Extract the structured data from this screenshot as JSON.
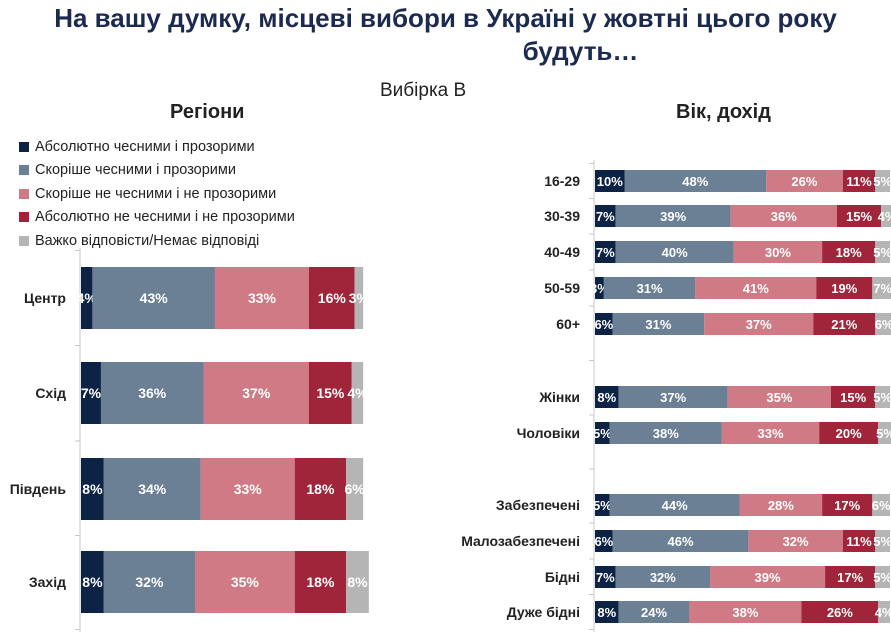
{
  "title_line1": "На вашу думку, місцеві вибори в Україні у жовтні цього року",
  "title_line2": "будуть…",
  "sample": "Вибірка B",
  "legend": {
    "items": [
      {
        "label": "Абсолютно чесними і прозорими",
        "color": "#0d2346"
      },
      {
        "label": "Скоріше чесними і прозорими",
        "color": "#6b7f95"
      },
      {
        "label": "Скоріше не чесними і не прозорими",
        "color": "#cf7a84"
      },
      {
        "label": "Абсолютно не чесними і не прозорими",
        "color": "#a0243a"
      },
      {
        "label": "Важко відповісти/Немає відповіді",
        "color": "#b5b5b5"
      }
    ]
  },
  "chart_data": [
    {
      "type": "bar",
      "orientation": "horizontal",
      "stacked": true,
      "title": "Регіони",
      "unit": "%",
      "categories": [
        "Центр",
        "Схід",
        "Південь",
        "Захід"
      ],
      "series": [
        {
          "name": "Абсолютно чесними і прозорими",
          "values": [
            4,
            7,
            8,
            8
          ]
        },
        {
          "name": "Скоріше чесними і прозорими",
          "values": [
            43,
            36,
            34,
            32
          ]
        },
        {
          "name": "Скоріше не чесними і не прозорими",
          "values": [
            33,
            37,
            33,
            35
          ]
        },
        {
          "name": "Абсолютно не чесними і не прозорими",
          "values": [
            16,
            15,
            18,
            18
          ]
        },
        {
          "name": "Важко відповісти/Немає відповіді",
          "values": [
            3,
            4,
            6,
            8
          ]
        }
      ]
    },
    {
      "type": "bar",
      "orientation": "horizontal",
      "stacked": true,
      "title": "Вік, дохід",
      "unit": "%",
      "categories": [
        "16-29",
        "30-39",
        "40-49",
        "50-59",
        "60+",
        "Жінки",
        "Чоловіки",
        "Забезпечені",
        "Малозабезпечені",
        "Бідні",
        "Дуже бідні"
      ],
      "groups": [
        [
          "16-29",
          "30-39",
          "40-49",
          "50-59",
          "60+"
        ],
        [
          "Жінки",
          "Чоловіки"
        ],
        [
          "Забезпечені",
          "Малозабезпечені",
          "Бідні",
          "Дуже бідні"
        ]
      ],
      "series": [
        {
          "name": "Абсолютно чесними і прозорими",
          "values": [
            10,
            7,
            7,
            3,
            6,
            8,
            5,
            5,
            6,
            7,
            8
          ]
        },
        {
          "name": "Скоріше чесними і прозорими",
          "values": [
            48,
            39,
            40,
            31,
            31,
            37,
            38,
            44,
            46,
            32,
            24
          ]
        },
        {
          "name": "Скоріше не чесними і не прозорими",
          "values": [
            26,
            36,
            30,
            41,
            37,
            35,
            33,
            28,
            32,
            39,
            38
          ]
        },
        {
          "name": "Абсолютно не чесними і не прозорими",
          "values": [
            11,
            15,
            18,
            19,
            21,
            15,
            20,
            17,
            11,
            17,
            26
          ]
        },
        {
          "name": "Важко відповісти/Немає відповіді",
          "values": [
            5,
            4,
            5,
            7,
            6,
            5,
            5,
            6,
            5,
            5,
            4
          ]
        }
      ]
    }
  ]
}
